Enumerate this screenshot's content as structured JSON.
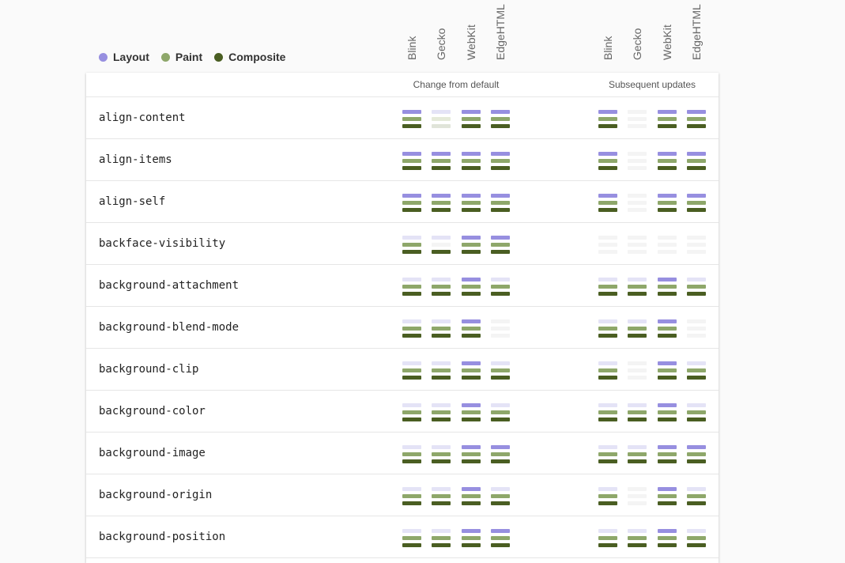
{
  "legend": {
    "items": [
      {
        "label": "Layout",
        "color": "#978fe0"
      },
      {
        "label": "Paint",
        "color": "#8ea76a"
      },
      {
        "label": "Composite",
        "color": "#4a5e22"
      }
    ]
  },
  "browsers": [
    "Blink",
    "Gecko",
    "WebKit",
    "EdgeHTML"
  ],
  "groups": [
    {
      "label": "Change from default"
    },
    {
      "label": "Subsequent updates"
    }
  ],
  "colors": {
    "layout_on": "#978fe0",
    "layout_off": "#e4e3f6",
    "paint_on": "#8ea76a",
    "paint_off": "#e5ead9",
    "composite_on": "#4a5e22",
    "composite_off": "#e0e4d9",
    "none": "#f4f4f4"
  },
  "rows": [
    {
      "name": "align-content",
      "default": [
        "LPC",
        "lpc",
        "LPC",
        "LPC"
      ],
      "updates": [
        "LPC",
        "---",
        "LPC",
        "LPC"
      ]
    },
    {
      "name": "align-items",
      "default": [
        "LPC",
        "LPC",
        "LPC",
        "LPC"
      ],
      "updates": [
        "LPC",
        "---",
        "LPC",
        "LPC"
      ]
    },
    {
      "name": "align-self",
      "default": [
        "LPC",
        "LPC",
        "LPC",
        "LPC"
      ],
      "updates": [
        "LPC",
        "---",
        "LPC",
        "LPC"
      ]
    },
    {
      "name": "backface-visibility",
      "default": [
        "lPC",
        "l-C",
        "LPC",
        "LPC"
      ],
      "updates": [
        "---",
        "---",
        "---",
        "---"
      ]
    },
    {
      "name": "background-attachment",
      "default": [
        "lPC",
        "lPC",
        "LPC",
        "lPC"
      ],
      "updates": [
        "lPC",
        "lPC",
        "LPC",
        "lPC"
      ]
    },
    {
      "name": "background-blend-mode",
      "default": [
        "lPC",
        "lPC",
        "LPC",
        "---"
      ],
      "updates": [
        "lPC",
        "lPC",
        "LPC",
        "---"
      ]
    },
    {
      "name": "background-clip",
      "default": [
        "lPC",
        "lPC",
        "LPC",
        "lPC"
      ],
      "updates": [
        "lPC",
        "---",
        "LPC",
        "lPC"
      ]
    },
    {
      "name": "background-color",
      "default": [
        "lPC",
        "lPC",
        "LPC",
        "lPC"
      ],
      "updates": [
        "lPC",
        "lPC",
        "LPC",
        "lPC"
      ]
    },
    {
      "name": "background-image",
      "default": [
        "lPC",
        "lPC",
        "LPC",
        "LPC"
      ],
      "updates": [
        "lPC",
        "lPC",
        "LPC",
        "LPC"
      ]
    },
    {
      "name": "background-origin",
      "default": [
        "lPC",
        "lPC",
        "LPC",
        "lPC"
      ],
      "updates": [
        "lPC",
        "---",
        "LPC",
        "lPC"
      ]
    },
    {
      "name": "background-position",
      "default": [
        "lPC",
        "lPC",
        "LPC",
        "LPC"
      ],
      "updates": [
        "lPC",
        "lPC",
        "LPC",
        "lPC"
      ]
    }
  ]
}
